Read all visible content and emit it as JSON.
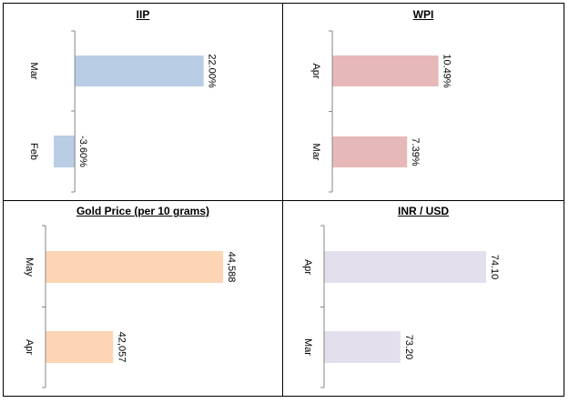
{
  "chart_data": [
    {
      "type": "bar",
      "orientation": "horizontal",
      "title": "IIP",
      "categories": [
        "Mar",
        "Feb"
      ],
      "values": [
        22.0,
        -3.6
      ],
      "labels": [
        "22.00%",
        "-3.60%"
      ],
      "xlim": [
        -5,
        25
      ],
      "color": "#B9CDE5"
    },
    {
      "type": "bar",
      "orientation": "horizontal",
      "title": "WPI",
      "categories": [
        "Apr",
        "Mar"
      ],
      "values": [
        10.49,
        7.39
      ],
      "labels": [
        "10.49%",
        "7.39%"
      ],
      "xlim": [
        0,
        12.5
      ],
      "color": "#E6B9B8"
    },
    {
      "type": "bar",
      "orientation": "horizontal",
      "title": "Gold Price (per 10 grams)",
      "categories": [
        "May",
        "Apr"
      ],
      "values": [
        44588,
        42057
      ],
      "labels": [
        "44,588",
        "42,057"
      ],
      "xlim": [
        40500,
        44588
      ],
      "color": "#FCD5B5"
    },
    {
      "type": "bar",
      "orientation": "horizontal",
      "title": "INR / USD",
      "categories": [
        "Apr",
        "Mar"
      ],
      "values": [
        74.1,
        73.2
      ],
      "labels": [
        "74.10",
        "73.20"
      ],
      "xlim": [
        72.4,
        74.1
      ],
      "color": "#E4DFEC"
    }
  ]
}
